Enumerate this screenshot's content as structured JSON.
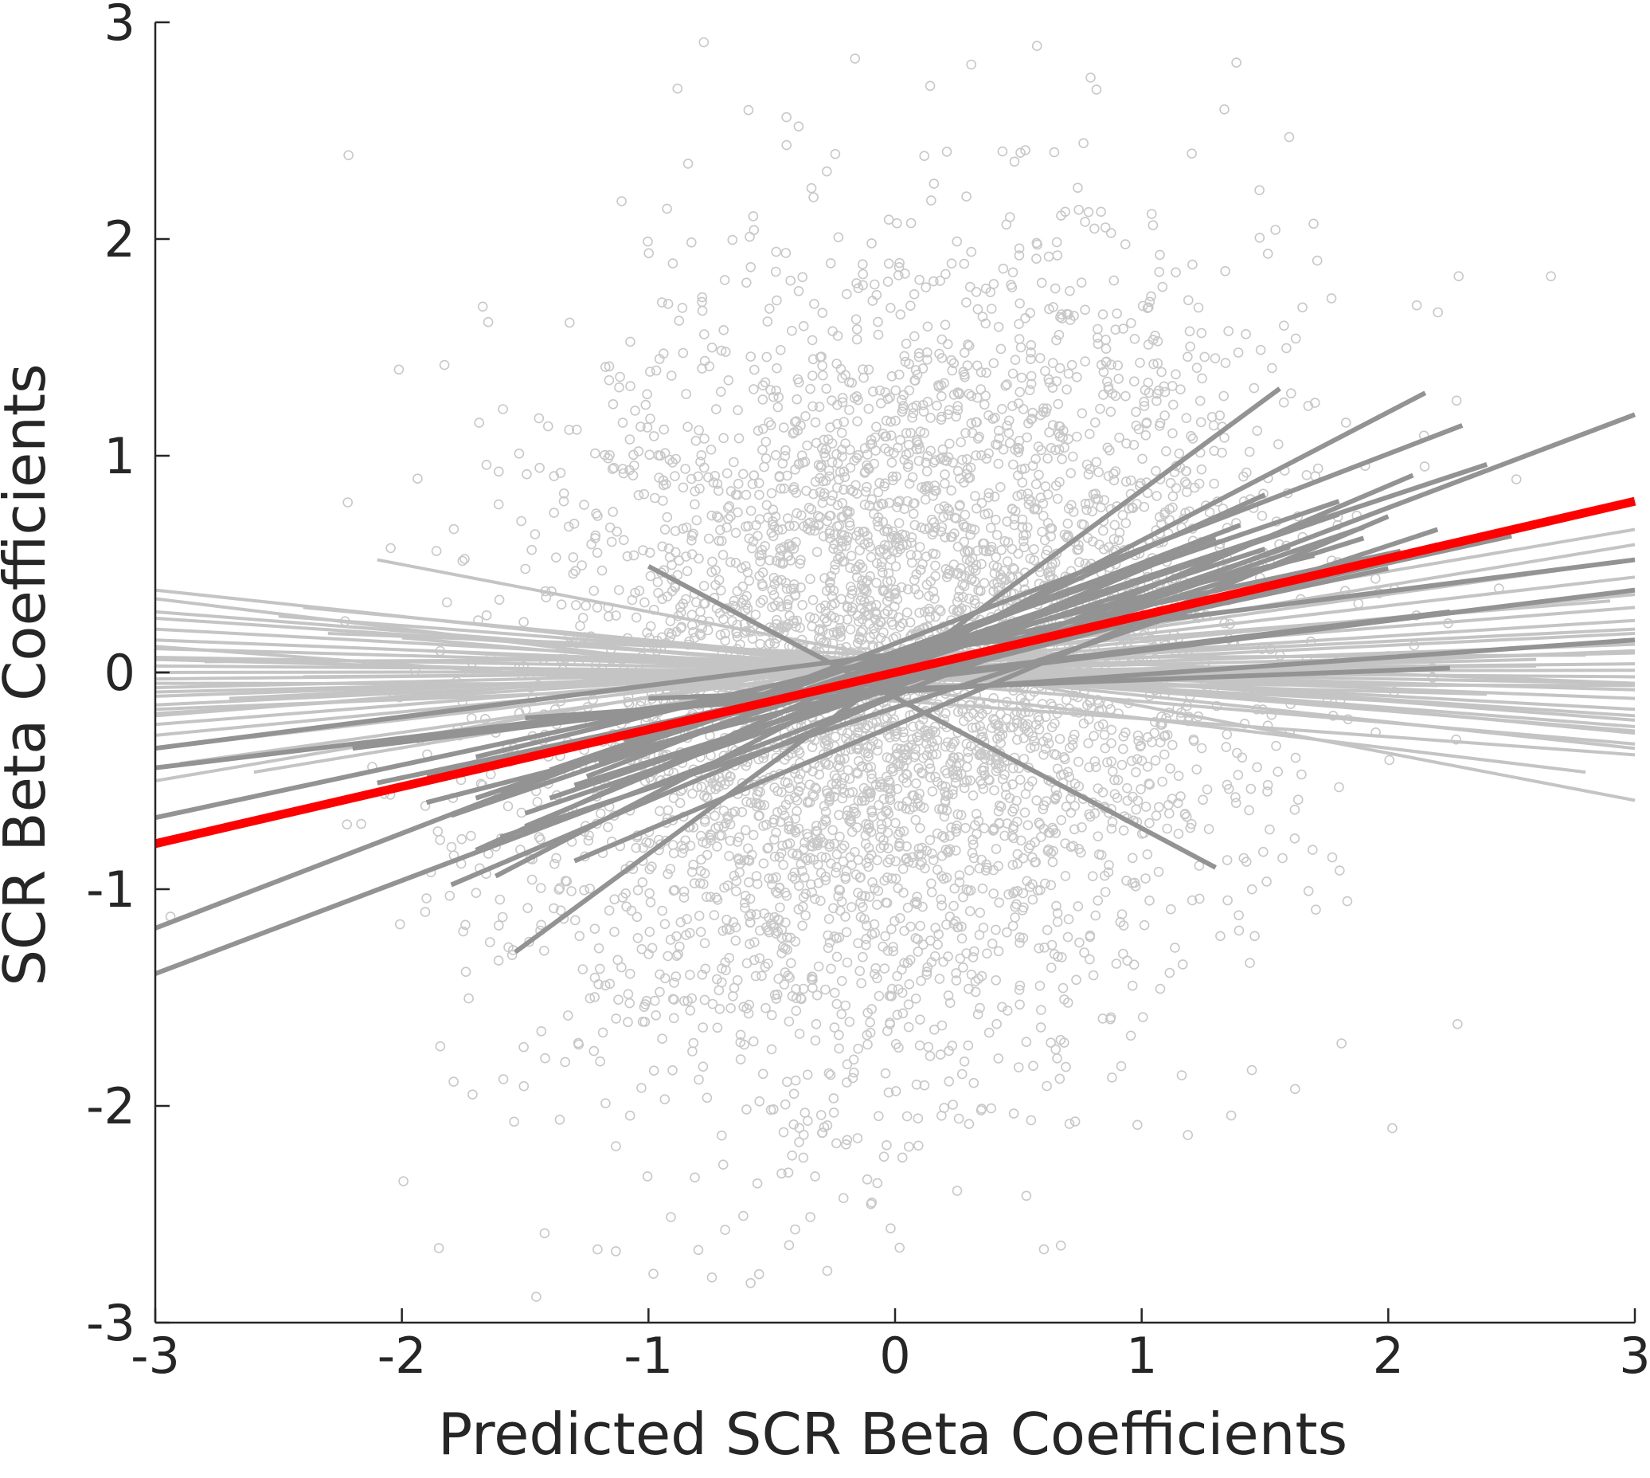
{
  "chart_data": {
    "type": "scatter",
    "title": "",
    "xlabel": "Predicted SCR Beta Coefficients",
    "ylabel": "SCR Beta Coefficients",
    "xlim": [
      -3,
      3
    ],
    "ylim": [
      -3,
      3
    ],
    "x_ticks": [
      "-3",
      "-2",
      "-1",
      "0",
      "1",
      "2",
      "3"
    ],
    "y_ticks": [
      "-3",
      "-2",
      "-1",
      "0",
      "1",
      "2",
      "3"
    ],
    "grid": false,
    "legend": "none",
    "colors": {
      "scatter_points": "#c8c8c8",
      "nonsignificant_fits": "#c4c4c4",
      "significant_fits": "#939393",
      "group_fit": "#ff0000",
      "axis": "#262626"
    },
    "scatter": {
      "count": 4500,
      "x_mean": 0.0,
      "x_sd": 0.75,
      "y_mean": 0.0,
      "y_sd": 0.95,
      "correlation": 0.2
    },
    "group_fit": {
      "x": [
        -3,
        3
      ],
      "y": [
        -0.79,
        0.79
      ]
    },
    "fits_significant": [
      {
        "x": [
          -3.0,
          3.0
        ],
        "y": [
          -1.39,
          1.19
        ]
      },
      {
        "x": [
          -3.0,
          2.3
        ],
        "y": [
          -1.18,
          1.14
        ]
      },
      {
        "x": [
          -1.54,
          1.56
        ],
        "y": [
          -1.29,
          1.31
        ]
      },
      {
        "x": [
          -1.62,
          2.15
        ],
        "y": [
          -0.94,
          1.29
        ]
      },
      {
        "x": [
          -1.8,
          2.1
        ],
        "y": [
          -0.98,
          0.91
        ]
      },
      {
        "x": [
          -1.3,
          2.0
        ],
        "y": [
          -0.87,
          0.72
        ]
      },
      {
        "x": [
          -1.7,
          1.5
        ],
        "y": [
          -0.82,
          0.82
        ]
      },
      {
        "x": [
          -1.6,
          2.2
        ],
        "y": [
          -0.76,
          0.66
        ]
      },
      {
        "x": [
          -1.5,
          1.9
        ],
        "y": [
          -0.65,
          0.67
        ]
      },
      {
        "x": [
          -1.8,
          1.8
        ],
        "y": [
          -0.66,
          0.73
        ]
      },
      {
        "x": [
          -1.4,
          1.6
        ],
        "y": [
          -0.58,
          0.58
        ]
      },
      {
        "x": [
          -1.7,
          2.4
        ],
        "y": [
          -0.58,
          0.96
        ]
      },
      {
        "x": [
          -1.3,
          1.9
        ],
        "y": [
          -0.52,
          0.62
        ]
      },
      {
        "x": [
          -1.25,
          1.4
        ],
        "y": [
          -0.48,
          0.68
        ]
      },
      {
        "x": [
          -1.9,
          2.5
        ],
        "y": [
          -0.47,
          0.63
        ]
      },
      {
        "x": [
          -3.0,
          2.05
        ],
        "y": [
          -0.67,
          0.56
        ]
      },
      {
        "x": [
          -3.0,
          3.0
        ],
        "y": [
          -0.35,
          0.52
        ]
      },
      {
        "x": [
          -2.2,
          3.0
        ],
        "y": [
          -0.35,
          0.38
        ]
      },
      {
        "x": [
          -3.0,
          2.25
        ],
        "y": [
          -0.44,
          0.28
        ]
      },
      {
        "x": [
          -1.0,
          1.3
        ],
        "y": [
          0.49,
          -0.9
        ]
      },
      {
        "x": [
          -1.5,
          3.0
        ],
        "y": [
          -0.21,
          0.15
        ]
      },
      {
        "x": [
          -1.0,
          2.25
        ],
        "y": [
          -0.12,
          0.02
        ]
      },
      {
        "x": [
          -1.7,
          1.7
        ],
        "y": [
          -0.39,
          0.54
        ]
      },
      {
        "x": [
          -2.1,
          2.0
        ],
        "y": [
          -0.51,
          0.48
        ]
      },
      {
        "x": [
          -1.2,
          1.5
        ],
        "y": [
          -0.42,
          0.57
        ]
      },
      {
        "x": [
          -1.4,
          1.8
        ],
        "y": [
          -0.45,
          0.79
        ]
      },
      {
        "x": [
          -1.6,
          1.3
        ],
        "y": [
          -0.55,
          0.62
        ]
      },
      {
        "x": [
          -1.1,
          1.7
        ],
        "y": [
          -0.31,
          0.44
        ]
      },
      {
        "x": [
          -1.9,
          2.2
        ],
        "y": [
          -0.6,
          0.59
        ]
      },
      {
        "x": [
          -1.5,
          1.2
        ],
        "y": [
          -0.71,
          0.57
        ]
      }
    ],
    "fits_nonsignificant": [
      {
        "x": [
          -2.1,
          3.0
        ],
        "y": [
          0.52,
          -0.59
        ]
      },
      {
        "x": [
          -3.0,
          3.0
        ],
        "y": [
          0.38,
          -0.35
        ]
      },
      {
        "x": [
          -3.0,
          2.8
        ],
        "y": [
          0.34,
          -0.46
        ]
      },
      {
        "x": [
          -2.4,
          3.0
        ],
        "y": [
          0.3,
          -0.28
        ]
      },
      {
        "x": [
          -3.0,
          3.0
        ],
        "y": [
          0.25,
          -0.2
        ]
      },
      {
        "x": [
          -3.0,
          3.0
        ],
        "y": [
          0.2,
          -0.17
        ]
      },
      {
        "x": [
          -3.0,
          3.0
        ],
        "y": [
          0.15,
          -0.12
        ]
      },
      {
        "x": [
          -3.0,
          3.0
        ],
        "y": [
          0.11,
          -0.08
        ]
      },
      {
        "x": [
          -3.0,
          3.0
        ],
        "y": [
          0.07,
          -0.05
        ]
      },
      {
        "x": [
          -3.0,
          3.0
        ],
        "y": [
          0.03,
          -0.02
        ]
      },
      {
        "x": [
          -3.0,
          3.0
        ],
        "y": [
          0.0,
          0.01
        ]
      },
      {
        "x": [
          -3.0,
          3.0
        ],
        "y": [
          -0.03,
          0.04
        ]
      },
      {
        "x": [
          -3.0,
          3.0
        ],
        "y": [
          -0.07,
          0.09
        ]
      },
      {
        "x": [
          -3.0,
          3.0
        ],
        "y": [
          -0.11,
          0.13
        ]
      },
      {
        "x": [
          -3.0,
          3.0
        ],
        "y": [
          -0.15,
          0.18
        ]
      },
      {
        "x": [
          -3.0,
          3.0
        ],
        "y": [
          -0.19,
          0.24
        ]
      },
      {
        "x": [
          -3.0,
          3.0
        ],
        "y": [
          -0.24,
          0.3
        ]
      },
      {
        "x": [
          -3.0,
          3.0
        ],
        "y": [
          -0.29,
          0.36
        ]
      },
      {
        "x": [
          -3.0,
          3.0
        ],
        "y": [
          -0.35,
          0.44
        ]
      },
      {
        "x": [
          -2.9,
          3.0
        ],
        "y": [
          -0.42,
          0.52
        ]
      },
      {
        "x": [
          -2.6,
          3.0
        ],
        "y": [
          -0.46,
          0.59
        ]
      },
      {
        "x": [
          -3.0,
          3.0
        ],
        "y": [
          -0.5,
          0.66
        ]
      },
      {
        "x": [
          -2.5,
          3.0
        ],
        "y": [
          0.26,
          -0.22
        ]
      },
      {
        "x": [
          -2.2,
          3.0
        ],
        "y": [
          0.21,
          -0.27
        ]
      },
      {
        "x": [
          -2.0,
          3.0
        ],
        "y": [
          0.16,
          -0.33
        ]
      },
      {
        "x": [
          -3.0,
          2.4
        ],
        "y": [
          0.06,
          -0.1
        ]
      },
      {
        "x": [
          -3.0,
          2.6
        ],
        "y": [
          -0.09,
          0.06
        ]
      },
      {
        "x": [
          -1.9,
          2.3
        ],
        "y": [
          0.1,
          -0.15
        ]
      },
      {
        "x": [
          -2.7,
          3.0
        ],
        "y": [
          -0.12,
          0.2
        ]
      },
      {
        "x": [
          -3.0,
          3.0
        ],
        "y": [
          0.12,
          -0.38
        ]
      },
      {
        "x": [
          -2.3,
          3.0
        ],
        "y": [
          0.18,
          -0.05
        ]
      },
      {
        "x": [
          -3.0,
          3.0
        ],
        "y": [
          -0.17,
          0.1
        ]
      },
      {
        "x": [
          -2.8,
          2.8
        ],
        "y": [
          0.05,
          0.08
        ]
      },
      {
        "x": [
          -1.6,
          2.2
        ],
        "y": [
          0.02,
          -0.06
        ]
      },
      {
        "x": [
          -3.0,
          2.9
        ],
        "y": [
          -0.2,
          0.33
        ]
      },
      {
        "x": [
          -3.0,
          3.0
        ],
        "y": [
          0.28,
          -0.25
        ]
      },
      {
        "x": [
          -2.4,
          2.6
        ],
        "y": [
          -0.02,
          0.03
        ]
      },
      {
        "x": [
          -3.0,
          3.0
        ],
        "y": [
          -0.05,
          -0.06
        ]
      }
    ]
  }
}
